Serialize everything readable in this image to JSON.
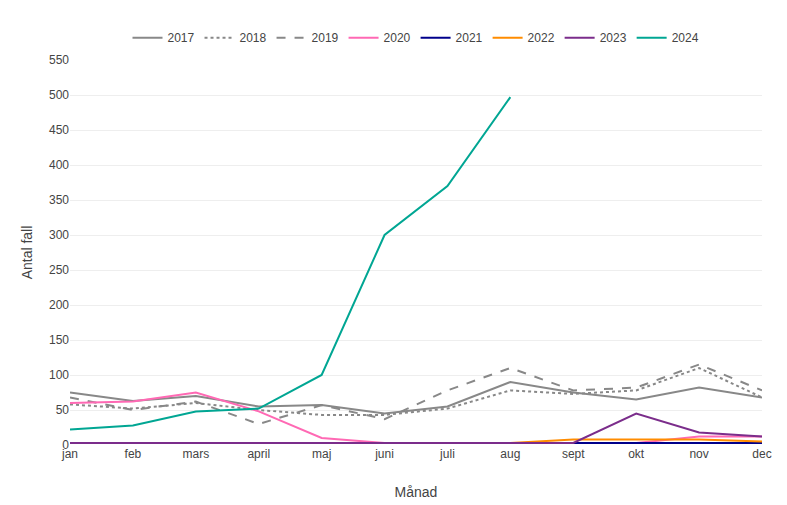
{
  "chart_data": {
    "type": "line",
    "categories": [
      "jan",
      "feb",
      "mars",
      "april",
      "maj",
      "juni",
      "juli",
      "aug",
      "sept",
      "okt",
      "nov",
      "dec"
    ],
    "series": [
      {
        "name": "2017",
        "color": "#888888",
        "line_style": "solid",
        "values": [
          75,
          63,
          70,
          55,
          57,
          45,
          55,
          90,
          75,
          65,
          82,
          68
        ]
      },
      {
        "name": "2018",
        "color": "#888888",
        "line_style": "dotted",
        "values": [
          58,
          52,
          60,
          50,
          43,
          43,
          52,
          78,
          73,
          78,
          110,
          68
        ]
      },
      {
        "name": "2019",
        "color": "#888888",
        "line_style": "dashed",
        "values": [
          68,
          50,
          62,
          30,
          57,
          37,
          78,
          110,
          78,
          82,
          115,
          78
        ]
      },
      {
        "name": "2020",
        "color": "#FF69B4",
        "line_style": "solid",
        "values": [
          60,
          62,
          75,
          48,
          10,
          3,
          3,
          3,
          3,
          3,
          12,
          12
        ]
      },
      {
        "name": "2021",
        "color": "#00008B",
        "line_style": "solid",
        "values": [
          3,
          3,
          3,
          3,
          3,
          3,
          3,
          3,
          3,
          3,
          3,
          3
        ]
      },
      {
        "name": "2022",
        "color": "#FF8C00",
        "line_style": "solid",
        "values": [
          3,
          3,
          3,
          3,
          3,
          3,
          3,
          3,
          8,
          8,
          8,
          5
        ]
      },
      {
        "name": "2023",
        "color": "#7B2D8B",
        "line_style": "solid",
        "values": [
          3,
          3,
          3,
          3,
          3,
          3,
          3,
          3,
          3,
          45,
          18,
          12
        ]
      },
      {
        "name": "2024",
        "color": "#00A693",
        "line_style": "solid",
        "values": [
          22,
          28,
          48,
          52,
          100,
          300,
          370,
          497,
          null,
          null,
          null,
          null
        ]
      }
    ],
    "xlabel": "Månad",
    "ylabel": "Antal fall",
    "ylim": [
      0,
      550
    ],
    "yticks": [
      0,
      50,
      100,
      150,
      200,
      250,
      300,
      350,
      400,
      450,
      500,
      550
    ],
    "grid": true,
    "legend": "top"
  }
}
